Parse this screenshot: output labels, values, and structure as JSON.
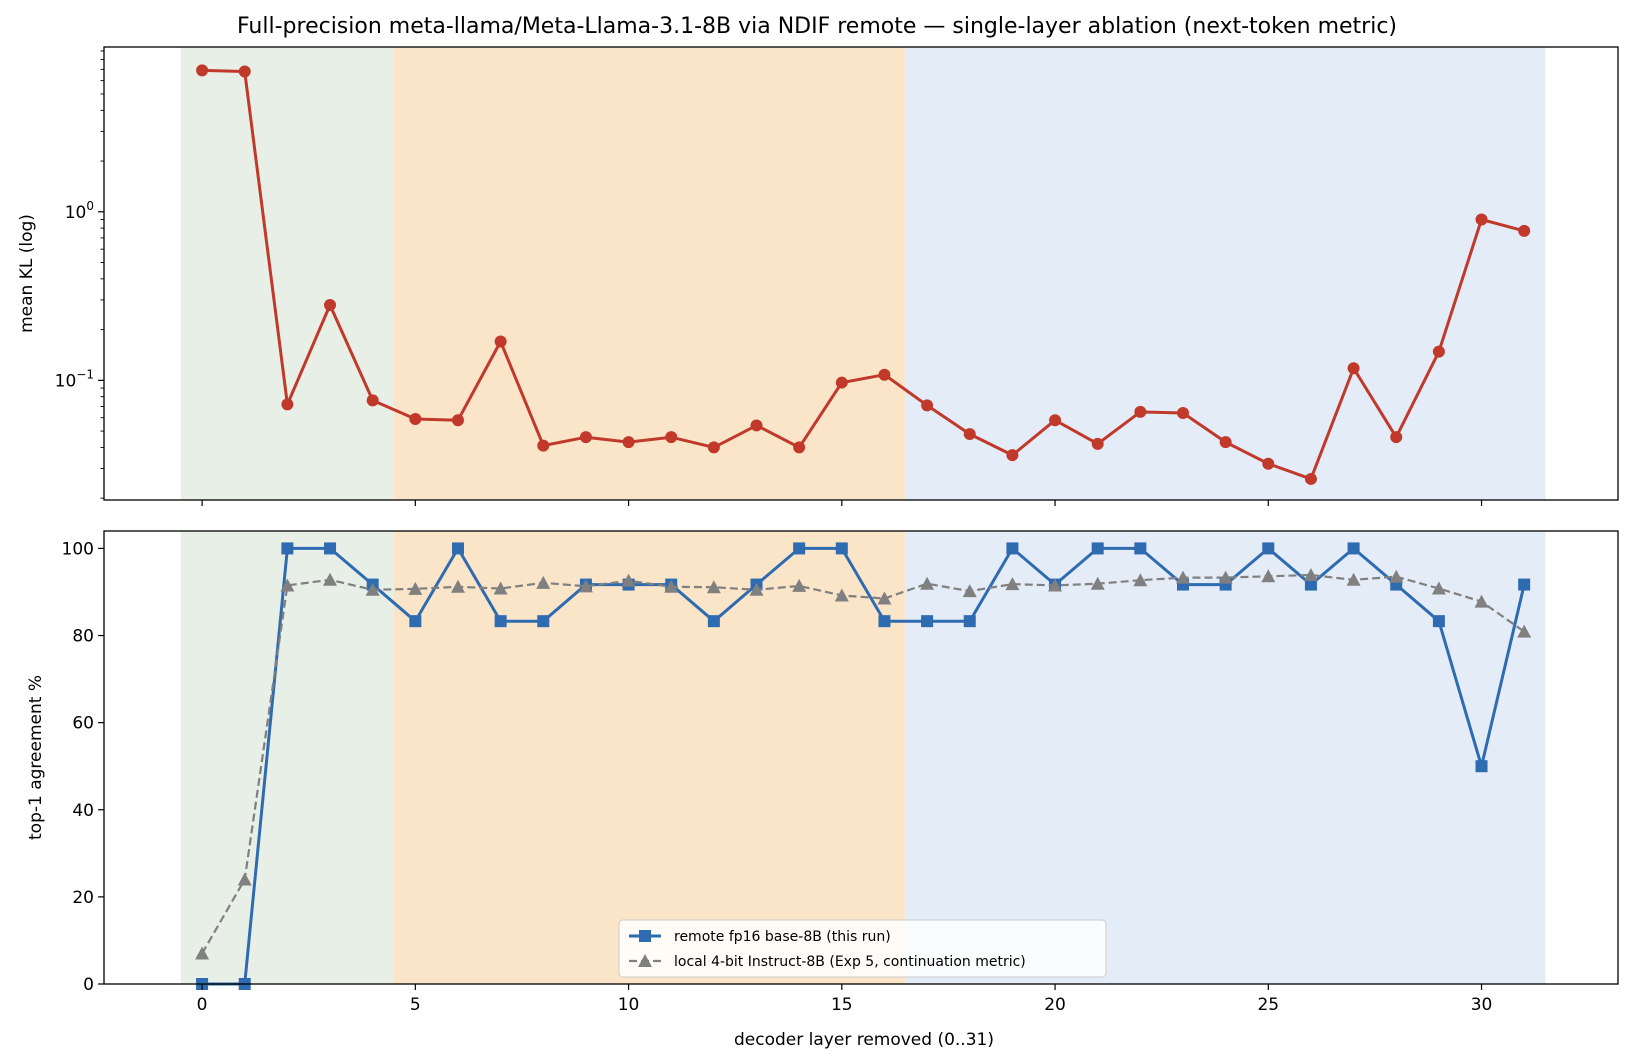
{
  "chart_data": {
    "type": "line",
    "title": "Full-precision meta-llama/Meta-Llama-3.1-8B via NDIF remote — single-layer ablation (next-token metric)",
    "xlabel": "decoder layer removed (0..31)",
    "x": [
      0,
      1,
      2,
      3,
      4,
      5,
      6,
      7,
      8,
      9,
      10,
      11,
      12,
      13,
      14,
      15,
      16,
      17,
      18,
      19,
      20,
      21,
      22,
      23,
      24,
      25,
      26,
      27,
      28,
      29,
      30,
      31
    ],
    "x_ticks": [
      0,
      5,
      10,
      15,
      20,
      25,
      30
    ],
    "x_tick_labels": [
      "0",
      "5",
      "10",
      "15",
      "20",
      "25",
      "30"
    ],
    "xlim": [
      -2.3,
      33.2
    ],
    "bands": [
      {
        "from": -0.5,
        "to": 4.5,
        "color": "#e8efe6"
      },
      {
        "from": 4.5,
        "to": 16.5,
        "color": "#fbe5c8"
      },
      {
        "from": 16.5,
        "to": 31.5,
        "color": "#e4ecf7"
      }
    ],
    "panels": [
      {
        "ylabel": "mean KL (log)",
        "yscale": "log",
        "ylim": [
          0.0195,
          9.5
        ],
        "y_ticks": [
          0.1,
          1.0
        ],
        "y_tick_labels": [
          {
            "base": "10",
            "exp": "−1"
          },
          {
            "base": "10",
            "exp": "0"
          }
        ],
        "series": [
          {
            "color": "#c0392b",
            "marker": "circle",
            "style": "solid",
            "values": [
              6.9,
              6.8,
              0.072,
              0.28,
              0.076,
              0.059,
              0.058,
              0.17,
              0.041,
              0.046,
              0.043,
              0.046,
              0.04,
              0.054,
              0.04,
              0.097,
              0.108,
              0.071,
              0.048,
              0.036,
              0.058,
              0.042,
              0.065,
              0.064,
              0.043,
              0.032,
              0.026,
              0.118,
              0.046,
              0.148,
              0.9,
              0.77
            ]
          }
        ]
      },
      {
        "ylabel": "top-1 agreement %",
        "yscale": "linear",
        "ylim": [
          0,
          104
        ],
        "y_ticks": [
          0,
          20,
          40,
          60,
          80,
          100
        ],
        "y_tick_labels": [
          "0",
          "20",
          "40",
          "60",
          "80",
          "100"
        ],
        "series": [
          {
            "name": "remote fp16 base-8B (this run)",
            "color": "#2e6bb0",
            "marker": "square",
            "style": "solid",
            "values": [
              0,
              0,
              100,
              100,
              91.7,
              83.3,
              100,
              83.3,
              83.3,
              91.7,
              91.7,
              91.7,
              83.3,
              91.7,
              100,
              100,
              83.3,
              83.3,
              83.3,
              100,
              91.7,
              100,
              100,
              91.7,
              91.7,
              100,
              91.7,
              100,
              91.7,
              83.3,
              50,
              91.7
            ]
          },
          {
            "name": "local 4-bit Instruct-8B (Exp 5, continuation metric)",
            "color": "#808080",
            "marker": "triangle",
            "style": "dashed",
            "values": [
              7,
              24,
              91.5,
              92.8,
              90.5,
              90.7,
              91.2,
              90.8,
              92.1,
              91.3,
              92.6,
              91.2,
              91.1,
              90.5,
              91.4,
              89.2,
              88.5,
              91.9,
              90.2,
              91.8,
              91.5,
              91.9,
              92.7,
              93.3,
              93.3,
              93.6,
              93.9,
              92.8,
              93.5,
              90.8,
              87.8,
              80.9
            ]
          }
        ],
        "legend_position": "lower center"
      }
    ]
  }
}
